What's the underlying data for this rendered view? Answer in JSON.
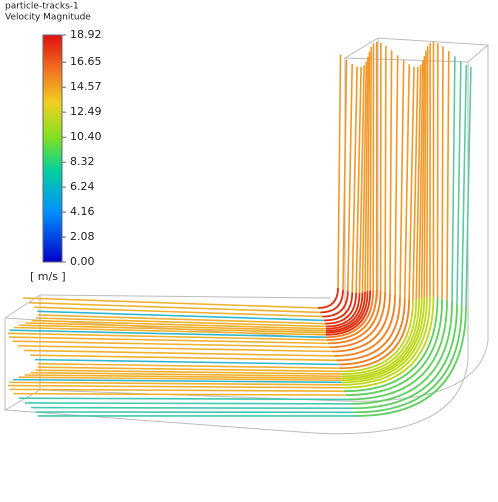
{
  "legend": {
    "title": "particle-tracks-1",
    "subtitle": "Velocity Magnitude",
    "unit": "[ m/s ]",
    "lim": [
      0,
      18.92
    ],
    "ticks": [
      18.92,
      16.65,
      14.57,
      12.49,
      {
        "value": 10.4,
        "label": "10.40"
      },
      8.32,
      6.24,
      4.16,
      2.08,
      {
        "value": 0,
        "label": "0.00"
      }
    ]
  }
}
